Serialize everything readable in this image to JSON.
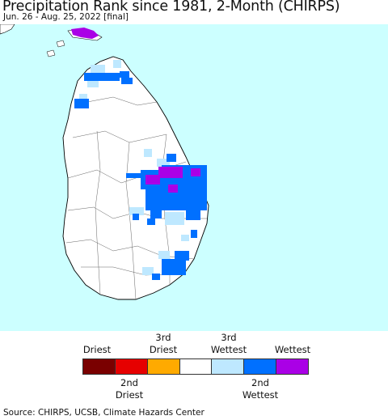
{
  "title": "Precipitation Rank since 1981, 2-Month (CHIRPS)",
  "subtitle": "Jun. 26 - Aug. 25, 2022 [final]",
  "legend": {
    "top_labels": [
      {
        "line1": "",
        "line2": "Driest"
      },
      {
        "line1": "3rd",
        "line2": "Driest"
      },
      {
        "line1": "3rd",
        "line2": "Wettest"
      },
      {
        "line1": "",
        "line2": "Wettest"
      }
    ],
    "bottom_labels": [
      {
        "line1": "2nd",
        "line2": "Driest"
      },
      {
        "line1": "2nd",
        "line2": "Wettest"
      }
    ],
    "colors": [
      "#7a0000",
      "#e60000",
      "#ffaa00",
      "#ffffff",
      "#bee8ff",
      "#0070ff",
      "#aa00e6"
    ]
  },
  "map_colors": {
    "ocean": "#ccffff",
    "land": "#ffffff",
    "border": "#000000"
  },
  "source": "Source: CHIRPS, UCSB, Climate Hazards Center"
}
